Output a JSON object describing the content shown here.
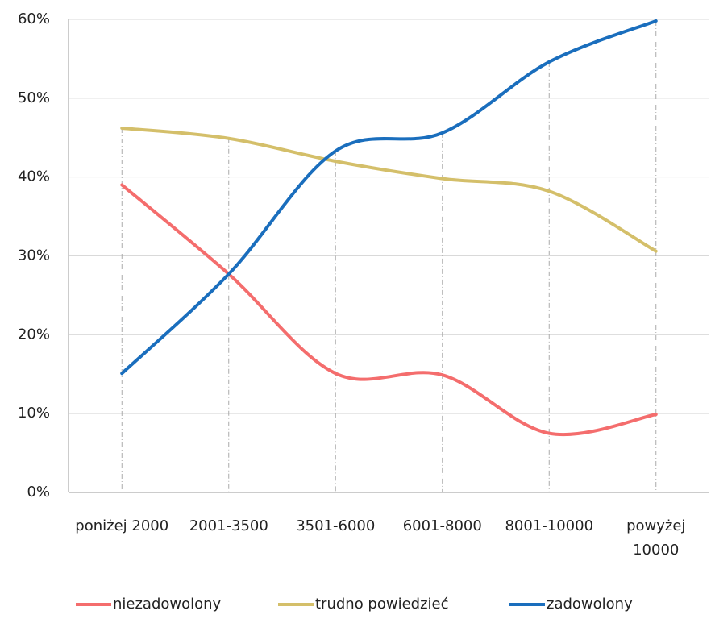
{
  "chart_data": {
    "type": "line",
    "categories": [
      "poniżej 2000",
      "2001-3500",
      "3501-6000",
      "6001-8000",
      "8001-10000",
      "powyżej 10000"
    ],
    "series": [
      {
        "name": "niezadowolony",
        "color": "#f46d6d",
        "values": [
          39,
          27.7,
          15.1,
          14.9,
          7.5,
          9.9
        ]
      },
      {
        "name": "trudno powiedzieć",
        "color": "#d4bf6a",
        "values": [
          46.2,
          44.9,
          42.0,
          39.8,
          38.2,
          30.6
        ]
      },
      {
        "name": "zadowolony",
        "color": "#1a6ebd",
        "values": [
          15.1,
          27.7,
          43.3,
          45.6,
          54.6,
          59.8
        ]
      }
    ],
    "ylim": [
      0,
      60
    ],
    "yticks": [
      {
        "value": 0,
        "label": "0%"
      },
      {
        "value": 10,
        "label": "10%"
      },
      {
        "value": 20,
        "label": "20%"
      },
      {
        "value": 30,
        "label": "30%"
      },
      {
        "value": 40,
        "label": "40%"
      },
      {
        "value": 50,
        "label": "50%"
      },
      {
        "value": 60,
        "label": "60%"
      }
    ],
    "grid": true
  }
}
